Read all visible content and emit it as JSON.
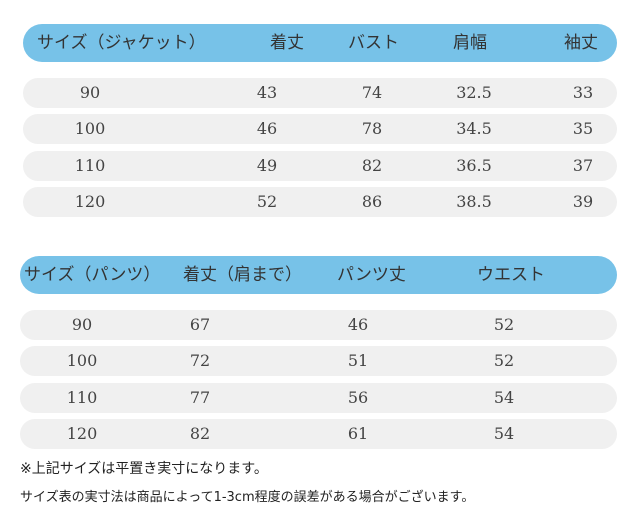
{
  "jacket_table": {
    "headers": [
      "サイズ（ジャケット）",
      "着丈",
      "バスト",
      "肩幅",
      "袖丈"
    ],
    "rows": [
      [
        "90",
        "43",
        "74",
        "32.5",
        "33"
      ],
      [
        "100",
        "46",
        "78",
        "34.5",
        "35"
      ],
      [
        "110",
        "49",
        "82",
        "36.5",
        "37"
      ],
      [
        "120",
        "52",
        "86",
        "38.5",
        "39"
      ]
    ]
  },
  "pants_table": {
    "headers": [
      "サイズ（パンツ）",
      "着丈（肩まで）",
      "パンツ丈",
      "ウエスト"
    ],
    "rows": [
      [
        "90",
        "67",
        "46",
        "52"
      ],
      [
        "100",
        "72",
        "51",
        "52"
      ],
      [
        "110",
        "77",
        "56",
        "54"
      ],
      [
        "120",
        "82",
        "61",
        "54"
      ]
    ]
  },
  "notes": [
    "※上記サイズは平置き実寸になります。",
    "サイズ表の実寸法は商品によって1-3cm程度の誤差がある場合がございます。"
  ],
  "colors": {
    "header_bg": "#77c2e8",
    "row_bg": "#f0f0f0",
    "text": "#333333"
  }
}
